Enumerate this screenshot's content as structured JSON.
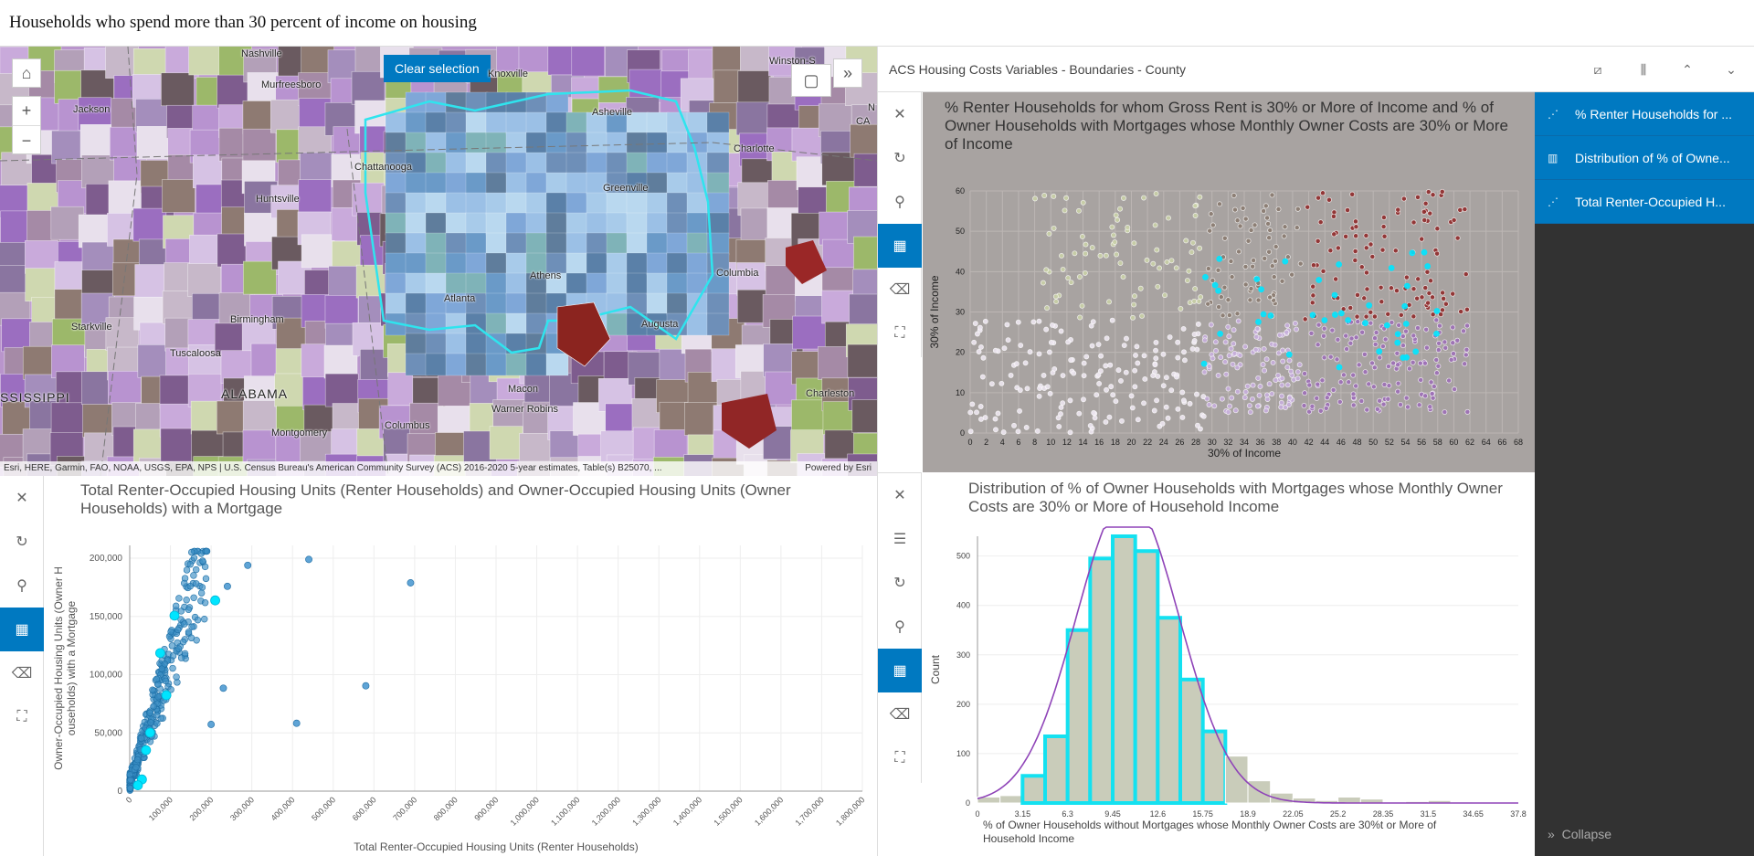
{
  "page_title": "Households who spend more than 30 percent of income on housing",
  "map": {
    "clear_selection_label": "Clear selection",
    "attribution": "Esri, HERE, Garmin, FAO, NOAA, USGS, EPA, NPS | U.S. Census Bureau's American Community Survey (ACS) 2016-2020 5-year estimates, Table(s) B25070, ...",
    "powered_by": "Powered by Esri",
    "icons": {
      "home": "home-icon",
      "zoom_in": "plus-icon",
      "zoom_out": "minus-icon",
      "select": "square-icon",
      "expand": "double-chevron-right-icon"
    },
    "cities": {
      "nashville": "Nashville",
      "knoxville": "Knoxville",
      "winston": "Winston-S",
      "murfreesboro": "Murfreesboro",
      "jackson": "Jackson",
      "asheville": "Asheville",
      "charlotte": "Charlotte",
      "chattanooga": "Chattanooga",
      "huntsville": "Huntsville",
      "greenville": "Greenville",
      "columbia": "Columbia",
      "birmingham": "Birmingham",
      "atlanta": "Atlanta",
      "athens": "Athens",
      "augusta": "Augusta",
      "starkville": "Starkville",
      "tuscaloosa": "Tuscaloosa",
      "alabama": "ALABAMA",
      "mississippi": "SSISSIPPI",
      "macon": "Macon",
      "warner_robins": "Warner Robins",
      "charleston": "Charleston",
      "columbus": "Columbus",
      "montgomery": "Montgomery",
      "nc_n": "N",
      "nc_ca": "CA"
    }
  },
  "right_panel": {
    "header_title": "ACS Housing Costs Variables - Boundaries - County",
    "header_icons": [
      "scatter-chart-icon",
      "histogram-icon",
      "chevrons-up-icon",
      "chevrons-down-icon"
    ]
  },
  "legend": {
    "items": [
      {
        "label": "% Renter Households for ...",
        "icon": "scatter-icon"
      },
      {
        "label": "Distribution of % of Owne...",
        "icon": "histogram-icon"
      },
      {
        "label": "Total Renter-Occupied H...",
        "icon": "scatter-icon"
      }
    ],
    "collapse_label": "Collapse"
  },
  "toolbar_icons": [
    "close-icon",
    "rotate-icon",
    "search-icon",
    "selection-icon",
    "eraser-icon",
    "fullscreen-icon"
  ],
  "hist_toolbar_icons": [
    "close-icon",
    "list-icon",
    "rotate-icon",
    "search-icon",
    "selection-icon",
    "eraser-icon",
    "fullscreen-icon"
  ],
  "colors": {
    "accent": "#0079c1",
    "selection": "#00e5ff",
    "dark_red": "#8b1a1a",
    "olive": "#9cb86a",
    "purple": "#9b6ec0"
  },
  "chart_data": [
    {
      "type": "scatter",
      "title": "% Renter Households for whom Gross Rent is 30% or More of Income and % of Owner Households with Mortgages whose Monthly Owner Costs are 30% or More of Income",
      "xlabel": "30% of Income",
      "ylabel": "30% of Income",
      "xlim": [
        0,
        68
      ],
      "ylim": [
        0,
        60
      ],
      "xticks": [
        0,
        2,
        4,
        6,
        8,
        10,
        12,
        14,
        16,
        18,
        20,
        22,
        24,
        26,
        28,
        30,
        32,
        34,
        36,
        38,
        40,
        42,
        44,
        46,
        48,
        50,
        52,
        54,
        56,
        58,
        60,
        62,
        64,
        66,
        68
      ],
      "yticks": [
        0,
        10,
        20,
        30,
        40,
        50,
        60
      ],
      "series": [
        {
          "color": "#ece6ef",
          "x_range": [
            0,
            29
          ],
          "y_range": [
            0,
            28
          ],
          "count": 170
        },
        {
          "color": "#c9d0a7",
          "x_range": [
            8,
            29
          ],
          "y_range": [
            28,
            60
          ],
          "count": 80
        },
        {
          "color": "#c6aedb",
          "x_range": [
            29,
            41
          ],
          "y_range": [
            5,
            28
          ],
          "count": 110
        },
        {
          "color": "#897b70",
          "x_range": [
            29,
            41
          ],
          "y_range": [
            28,
            60
          ],
          "count": 70
        },
        {
          "color": "#9c6fb6",
          "x_range": [
            41,
            62
          ],
          "y_range": [
            5,
            28
          ],
          "count": 140
        },
        {
          "color": "#8f2b2b",
          "x_range": [
            41,
            62
          ],
          "y_range": [
            28,
            60
          ],
          "count": 110
        },
        {
          "color": "#00e5ff",
          "x_range": [
            29,
            58
          ],
          "y_range": [
            15,
            45
          ],
          "count": 40,
          "selected": true
        }
      ]
    },
    {
      "type": "scatter",
      "title": "Total Renter-Occupied Housing Units (Renter Households) and Owner-Occupied Housing Units (Owner Households) with a Mortgage",
      "xlabel": "Total Renter-Occupied Housing Units (Renter Households)",
      "ylabel": "Owner-Occupied Housing Units (Owner Households) with a Mortgage",
      "xlim": [
        0,
        1800000
      ],
      "ylim": [
        0,
        210000
      ],
      "xticks": [
        "0",
        "100,000",
        "200,000",
        "300,000",
        "400,000",
        "500,000",
        "600,000",
        "700,000",
        "800,000",
        "900,000",
        "1,000,000",
        "1,100,000",
        "1,200,000",
        "1,300,000",
        "1,400,000",
        "1,500,000",
        "1,600,000",
        "1,700,000",
        "1,800,000"
      ],
      "yticks": [
        "0",
        "50,000",
        "100,000",
        "150,000",
        "200,000"
      ],
      "outliers": [
        [
          440000,
          198000
        ],
        [
          690000,
          178000
        ],
        [
          580000,
          90000
        ],
        [
          410000,
          58000
        ],
        [
          290000,
          193000
        ],
        [
          240000,
          175000
        ],
        [
          230000,
          88000
        ],
        [
          200000,
          57000
        ]
      ],
      "selected": [
        [
          110000,
          150000
        ],
        [
          210000,
          163000
        ],
        [
          75000,
          118000
        ],
        [
          90000,
          82000
        ],
        [
          50000,
          50000
        ],
        [
          40000,
          35000
        ],
        [
          30000,
          10000
        ],
        [
          20000,
          5000
        ]
      ]
    },
    {
      "type": "histogram",
      "title": "Distribution of % of Owner Households with Mortgages whose Monthly Owner Costs are 30% or More of Household Income",
      "xlabel": "% of Owner Households without Mortgages whose Monthly Owner Costs are 30%t or More of Household Income",
      "ylabel": "Count",
      "xticks": [
        "0",
        "3.15",
        "6.3",
        "9.45",
        "12.6",
        "15.75",
        "18.9",
        "22.05",
        "25.2",
        "28.35",
        "31.5",
        "34.65",
        "37.8"
      ],
      "yticks": [
        0,
        100,
        200,
        300,
        400,
        500
      ],
      "ylim": [
        0,
        540
      ],
      "bin_width": 1.575,
      "counts": [
        12,
        15,
        55,
        135,
        350,
        495,
        540,
        510,
        375,
        250,
        145,
        95,
        45,
        20,
        10,
        5,
        12,
        8,
        2,
        3,
        5,
        2,
        1,
        0
      ],
      "selected_bins": [
        2,
        3,
        4,
        5,
        6,
        7,
        8,
        9,
        10
      ],
      "xmax": 37.8
    }
  ]
}
